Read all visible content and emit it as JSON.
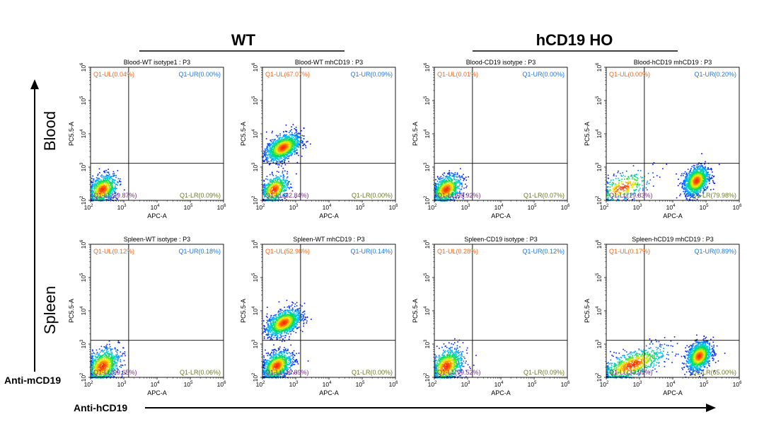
{
  "header": {
    "left_group": "WT",
    "right_group": "hCD19 HO"
  },
  "rows": [
    "Blood",
    "Spleen"
  ],
  "axis_labels": {
    "y_arrow": "Anti-mCD19",
    "x_arrow": "Anti-hCD19"
  },
  "chart_data": [
    {
      "type": "scatter",
      "title": "Blood-WT isotype1 : P3",
      "xlabel": "APC-A",
      "ylabel": "PC5.5-A",
      "xscale": "log",
      "yscale": "log",
      "xlim": [
        100,
        1000000
      ],
      "ylim": [
        100,
        1000000
      ],
      "x_ticks": [
        "2",
        "3",
        "4",
        "5",
        "6"
      ],
      "y_ticks": [
        "2",
        "3",
        "4",
        "5",
        "6"
      ],
      "gate": {
        "x": 1400,
        "y": 1300
      },
      "quadrants": {
        "UL": "Q1-UL(0.04%)",
        "UR": "Q1-UR(0.00%)",
        "LL": "Q1-LL(99.87%)",
        "LR": "Q1-LR(0.09%)"
      },
      "populations": [
        {
          "x": 220,
          "y": 220,
          "count": 900,
          "spread_x": 0.22,
          "spread_y": 0.2
        }
      ]
    },
    {
      "type": "scatter",
      "title": "Blood-WT mhCD19 : P3",
      "xlabel": "APC-A",
      "ylabel": "PC5.5-A",
      "xscale": "log",
      "yscale": "log",
      "xlim": [
        100,
        1000000
      ],
      "ylim": [
        100,
        1000000
      ],
      "x_ticks": [
        "2",
        "3",
        "4",
        "5",
        "6"
      ],
      "y_ticks": [
        "2",
        "3",
        "4",
        "5",
        "6"
      ],
      "gate": {
        "x": 1400,
        "y": 1300
      },
      "quadrants": {
        "UL": "Q1-UL(67.07%)",
        "UR": "Q1-UR(0.09%)",
        "LL": "Q1-LL(32.84%)",
        "LR": "Q1-LR(0.00%)"
      },
      "populations": [
        {
          "x": 400,
          "y": 4000,
          "count": 1400,
          "spread_x": 0.25,
          "spread_y": 0.18
        },
        {
          "x": 220,
          "y": 220,
          "count": 650,
          "spread_x": 0.2,
          "spread_y": 0.2
        }
      ]
    },
    {
      "type": "scatter",
      "title": "Blood-CD19 isotype : P3",
      "xlabel": "APC-A",
      "ylabel": "PC5.5-A",
      "xscale": "log",
      "yscale": "log",
      "xlim": [
        100,
        1000000
      ],
      "ylim": [
        100,
        1000000
      ],
      "x_ticks": [
        "2",
        "3",
        "4",
        "5",
        "6"
      ],
      "y_ticks": [
        "2",
        "3",
        "4",
        "5",
        "6"
      ],
      "gate": {
        "x": 1400,
        "y": 1300
      },
      "quadrants": {
        "UL": "Q1-UL(0.01%)",
        "UR": "Q1-UR(0.00%)",
        "LL": "Q1-LL(99.92%)",
        "LR": "Q1-LR(0.07%)"
      },
      "populations": [
        {
          "x": 220,
          "y": 220,
          "count": 900,
          "spread_x": 0.22,
          "spread_y": 0.2
        }
      ]
    },
    {
      "type": "scatter",
      "title": "Blood-hCD19 mhCD19 : P3",
      "xlabel": "APC-A",
      "ylabel": "PC5.5-A",
      "xscale": "log",
      "yscale": "log",
      "xlim": [
        100,
        1000000
      ],
      "ylim": [
        100,
        1000000
      ],
      "x_ticks": [
        "2",
        "3",
        "4",
        "5",
        "6"
      ],
      "y_ticks": [
        "2",
        "3",
        "4",
        "5",
        "6"
      ],
      "gate": {
        "x": 1400,
        "y": 1300
      },
      "quadrants": {
        "UL": "Q1-UL(0.00%)",
        "UR": "Q1-UR(0.20%)",
        "LL": "Q1-LL(19.83%)",
        "LR": "Q1-LR(79.98%)"
      },
      "populations": [
        {
          "x": 50000,
          "y": 400,
          "count": 1400,
          "spread_x": 0.18,
          "spread_y": 0.2
        },
        {
          "x": 300,
          "y": 250,
          "count": 350,
          "spread_x": 0.4,
          "spread_y": 0.2
        }
      ]
    },
    {
      "type": "scatter",
      "title": "Spleen-WT isotype : P3",
      "xlabel": "APC-A",
      "ylabel": "PC5.5-A",
      "xscale": "log",
      "yscale": "log",
      "xlim": [
        100,
        1000000
      ],
      "ylim": [
        100,
        1000000
      ],
      "x_ticks": [
        "2",
        "3",
        "4",
        "5",
        "6"
      ],
      "y_ticks": [
        "2",
        "3",
        "4",
        "5",
        "6"
      ],
      "gate": {
        "x": 1400,
        "y": 1300
      },
      "quadrants": {
        "UL": "Q1-UL(0.12%)",
        "UR": "Q1-UR(0.18%)",
        "LL": "Q1-LL(99.65%)",
        "LR": "Q1-LR(0.06%)"
      },
      "populations": [
        {
          "x": 220,
          "y": 220,
          "count": 1000,
          "spread_x": 0.25,
          "spread_y": 0.25
        }
      ]
    },
    {
      "type": "scatter",
      "title": "Spleen-WT mhCD19 : P3",
      "xlabel": "APC-A",
      "ylabel": "PC5.5-A",
      "xscale": "log",
      "yscale": "log",
      "xlim": [
        100,
        1000000
      ],
      "ylim": [
        100,
        1000000
      ],
      "x_ticks": [
        "2",
        "3",
        "4",
        "5",
        "6"
      ],
      "y_ticks": [
        "2",
        "3",
        "4",
        "5",
        "6"
      ],
      "gate": {
        "x": 1400,
        "y": 1300
      },
      "quadrants": {
        "UL": "Q1-UL(52.98%)",
        "UR": "Q1-UR(0.14%)",
        "LL": "Q1-LL(46.89%)",
        "LR": "Q1-LR(0.00%)"
      },
      "populations": [
        {
          "x": 420,
          "y": 4500,
          "count": 1300,
          "spread_x": 0.25,
          "spread_y": 0.18
        },
        {
          "x": 260,
          "y": 230,
          "count": 1100,
          "spread_x": 0.22,
          "spread_y": 0.2
        }
      ]
    },
    {
      "type": "scatter",
      "title": "Spleen-CD19 isotype : P3",
      "xlabel": "APC-A",
      "ylabel": "PC5.5-A",
      "xscale": "log",
      "yscale": "log",
      "xlim": [
        100,
        1000000
      ],
      "ylim": [
        100,
        1000000
      ],
      "x_ticks": [
        "2",
        "3",
        "4",
        "5",
        "6"
      ],
      "y_ticks": [
        "2",
        "3",
        "4",
        "5",
        "6"
      ],
      "gate": {
        "x": 1400,
        "y": 1300
      },
      "quadrants": {
        "UL": "Q1-UL(0.28%)",
        "UR": "Q1-UR(0.12%)",
        "LL": "Q1-LL(99.52%)",
        "LR": "Q1-LR(0.09%)"
      },
      "populations": [
        {
          "x": 220,
          "y": 220,
          "count": 1000,
          "spread_x": 0.25,
          "spread_y": 0.25
        }
      ]
    },
    {
      "type": "scatter",
      "title": "Spleen-hCD19 mhCD19 : P3",
      "xlabel": "APC-A",
      "ylabel": "PC5.5-A",
      "xscale": "log",
      "yscale": "log",
      "xlim": [
        100,
        1000000
      ],
      "ylim": [
        100,
        1000000
      ],
      "x_ticks": [
        "2",
        "3",
        "4",
        "5",
        "6"
      ],
      "y_ticks": [
        "2",
        "3",
        "4",
        "5",
        "6"
      ],
      "gate": {
        "x": 1400,
        "y": 1300
      },
      "quadrants": {
        "UL": "Q1-UL(0.17%)",
        "UR": "Q1-UR(0.89%)",
        "LL": "Q1-LL(33.95%)",
        "LR": "Q1-LR(65.00%)"
      },
      "populations": [
        {
          "x": 60000,
          "y": 450,
          "count": 1300,
          "spread_x": 0.18,
          "spread_y": 0.2
        },
        {
          "x": 600,
          "y": 250,
          "count": 900,
          "spread_x": 0.5,
          "spread_y": 0.2
        }
      ]
    }
  ]
}
